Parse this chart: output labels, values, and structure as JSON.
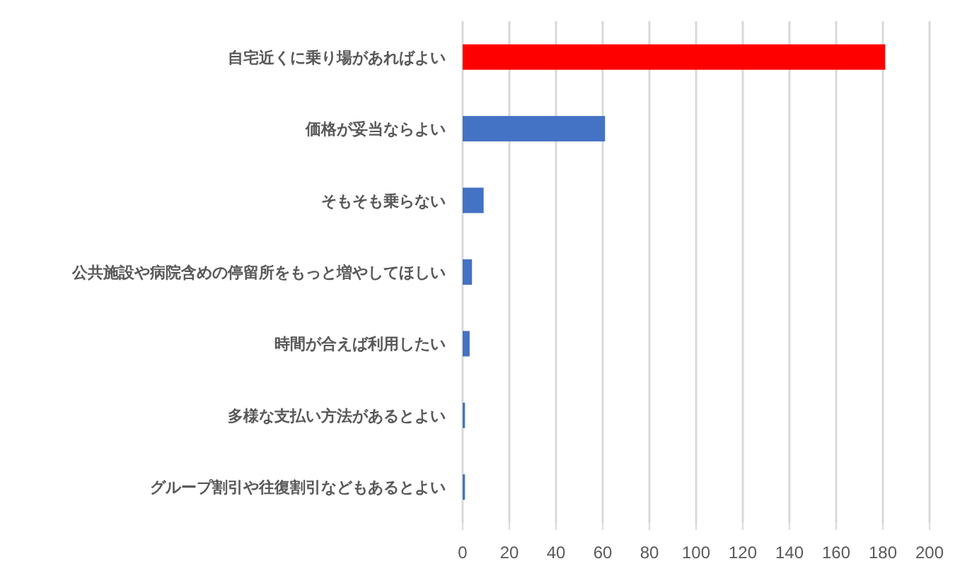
{
  "chart_data": {
    "type": "bar",
    "orientation": "horizontal",
    "categories": [
      "自宅近くに乗り場があればよい",
      "価格が妥当ならよい",
      "そもそも乗らない",
      "公共施設や病院含めの停留所をもっと増やしてほしい",
      "時間が合えば利用したい",
      "多様な支払い方法があるとよい",
      "グループ割引や往復割引などもあるとよい"
    ],
    "values": [
      181,
      61,
      9,
      4,
      3,
      1,
      1
    ],
    "colors": [
      "#ff0000",
      "#4472c4",
      "#4472c4",
      "#4472c4",
      "#4472c4",
      "#4472c4",
      "#4472c4"
    ],
    "xlim": [
      0,
      200
    ],
    "xticks": [
      0,
      20,
      40,
      60,
      80,
      100,
      120,
      140,
      160,
      180,
      200
    ],
    "grid": "x"
  }
}
